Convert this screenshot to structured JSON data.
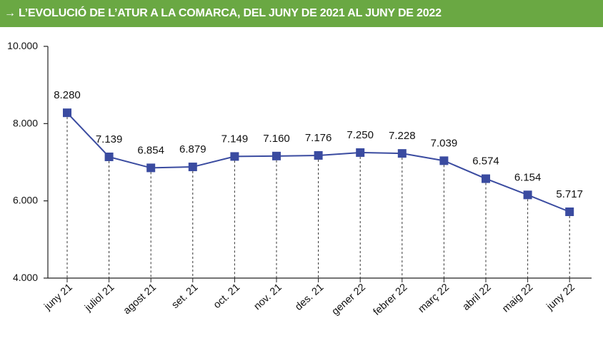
{
  "header": {
    "title": "→ L’EVOLUCIÓ DE L’ATUR A LA COMARCA, DEL JUNY DE 2021 AL JUNY DE 2022",
    "background_color": "#6aa843",
    "text_color": "#ffffff"
  },
  "chart_data": {
    "type": "line",
    "title": "L’EVOLUCIÓ DE L’ATUR A LA COMARCA, DEL JUNY DE 2021 AL JUNY DE 2022",
    "xlabel": "",
    "ylabel": "",
    "categories": [
      "juny 21",
      "juliol 21",
      "agost 21",
      "set. 21",
      "oct. 21",
      "nov. 21",
      "des. 21",
      "gener 22",
      "febrer 22",
      "març 22",
      "abril 22",
      "maig 22",
      "juny 22"
    ],
    "series": [
      {
        "name": "Atur",
        "values": [
          8280,
          7139,
          6854,
          6879,
          7149,
          7160,
          7176,
          7250,
          7228,
          7039,
          6574,
          6154,
          5717
        ],
        "labels": [
          "8.280",
          "7.139",
          "6.854",
          "6.879",
          "7.149",
          "7.160",
          "7.176",
          "7.250",
          "7.228",
          "7.039",
          "6.574",
          "6.154",
          "5.717"
        ],
        "color": "#3a4ba0"
      }
    ],
    "yticks": [
      4000,
      6000,
      8000,
      10000
    ],
    "ytick_labels": [
      "4.000",
      "6.000",
      "8.000",
      "10.000"
    ],
    "ylim": [
      4000,
      10000
    ],
    "grid": false,
    "drop_lines": true
  }
}
